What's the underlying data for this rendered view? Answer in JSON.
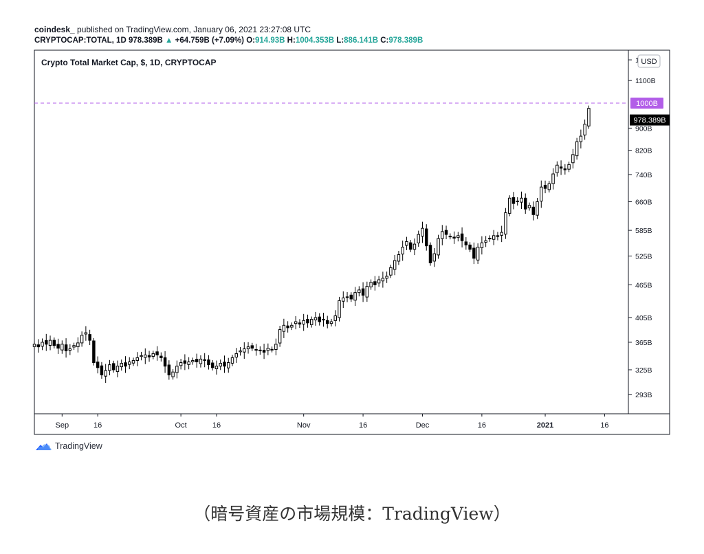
{
  "header": {
    "publisher": "coindesk_",
    "published_text": "published on TradingView.com, January 06, 2021 23:27:08 UTC",
    "symbol": "CRYPTOCAP:TOTAL, 1D",
    "last": "978.389B",
    "change_arrow": "▲",
    "change": "+64.759B (+7.09%)",
    "o_label": "O:",
    "o_value": "914.93B",
    "h_label": "H:",
    "h_value": "1004.353B",
    "l_label": "L:",
    "l_value": "886.141B",
    "c_label": "C:",
    "c_value": "978.389B"
  },
  "chart_data": {
    "type": "candlestick",
    "title": "Crypto Total Market Cap, $, 1D, CRYPTOCAP",
    "currency_label": "USD",
    "y_scale": "log",
    "ylim": [
      270,
      1250
    ],
    "y_ticks": [
      {
        "value": 1200,
        "label": "1200B"
      },
      {
        "value": 1100,
        "label": "1100B"
      },
      {
        "value": 900,
        "label": "900B"
      },
      {
        "value": 820,
        "label": "820B"
      },
      {
        "value": 740,
        "label": "740B"
      },
      {
        "value": 660,
        "label": "660B"
      },
      {
        "value": 585,
        "label": "585B"
      },
      {
        "value": 525,
        "label": "525B"
      },
      {
        "value": 465,
        "label": "465B"
      },
      {
        "value": 405,
        "label": "405B"
      },
      {
        "value": 365,
        "label": "365B"
      },
      {
        "value": 325,
        "label": "325B"
      },
      {
        "value": 293,
        "label": "293B"
      }
    ],
    "x_ticks": [
      {
        "label": "Sep",
        "day": 7,
        "bold": false
      },
      {
        "label": "16",
        "day": 16,
        "bold": false
      },
      {
        "label": "Oct",
        "day": 37,
        "bold": false
      },
      {
        "label": "16",
        "day": 46,
        "bold": false
      },
      {
        "label": "Nov",
        "day": 68,
        "bold": false
      },
      {
        "label": "16",
        "day": 83,
        "bold": false
      },
      {
        "label": "Dec",
        "day": 98,
        "bold": false
      },
      {
        "label": "16",
        "day": 113,
        "bold": false
      },
      {
        "label": "2021",
        "day": 129,
        "bold": true
      },
      {
        "label": "16",
        "day": 144,
        "bold": false
      }
    ],
    "start_date": "2020-08-31",
    "horizontal_line": {
      "value": 1000,
      "label": "1000B",
      "color": "#b25ee8"
    },
    "last_price": {
      "value": 978.389,
      "label": "978.389B"
    },
    "candle_color": "#000000",
    "close": [
      362,
      358,
      365,
      362,
      368,
      360,
      356,
      362,
      352,
      355,
      360,
      364,
      376,
      380,
      368,
      335,
      328,
      318,
      324,
      332,
      325,
      330,
      334,
      330,
      336,
      338,
      342,
      345,
      346,
      343,
      348,
      346,
      342,
      330,
      318,
      322,
      330,
      335,
      334,
      336,
      338,
      336,
      340,
      338,
      332,
      328,
      330,
      334,
      330,
      335,
      342,
      348,
      352,
      355,
      358,
      356,
      354,
      352,
      350,
      356,
      354,
      362,
      385,
      392,
      388,
      392,
      398,
      394,
      400,
      396,
      402,
      405,
      398,
      402,
      395,
      398,
      408,
      435,
      440,
      442,
      438,
      450,
      455,
      445,
      462,
      470,
      465,
      475,
      478,
      482,
      500,
      515,
      528,
      545,
      558,
      540,
      552,
      575,
      590,
      548,
      510,
      530,
      565,
      582,
      575,
      570,
      566,
      572,
      560,
      550,
      540,
      520,
      545,
      555,
      560,
      566,
      572,
      570,
      580,
      630,
      670,
      655,
      662,
      670,
      640,
      650,
      625,
      660,
      702,
      698,
      712,
      742,
      770,
      760,
      755,
      772,
      805,
      850,
      870,
      915,
      978
    ]
  },
  "watermark": "TradingView",
  "caption": "（暗号資産の市場規模：TradingView）",
  "colors": {
    "up": "#26a69a",
    "down": "#ef5350",
    "purple": "#b25ee8",
    "axis": "#131722"
  }
}
